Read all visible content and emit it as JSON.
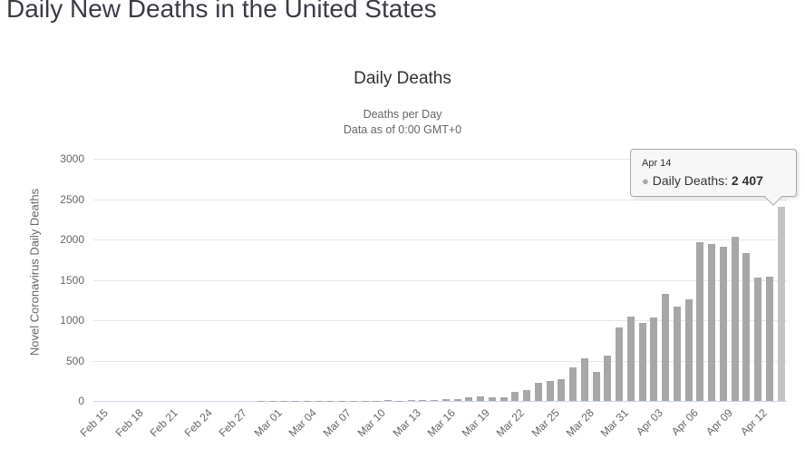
{
  "page": {
    "title": "Daily New Deaths in the United States"
  },
  "tooltip": {
    "date": "Apr 14",
    "marker": "●",
    "label": "Daily Deaths:",
    "value": "2 407"
  },
  "chart_data": {
    "type": "bar",
    "title": "Daily Deaths",
    "subtitle_line1": "Deaths per Day",
    "subtitle_line2": "Data as of 0:00 GMT+0",
    "xlabel": "",
    "ylabel": "Novel Coronavirus Daily Deaths",
    "ylim": [
      0,
      3000
    ],
    "yticks": [
      0,
      500,
      1000,
      1500,
      2000,
      2500,
      3000
    ],
    "grid": true,
    "legend": false,
    "bar_color": "#a7a7a7",
    "highlight_color": "#c3c3c3",
    "highlight_index": 59,
    "categories": [
      "Feb 15",
      "Feb 16",
      "Feb 17",
      "Feb 18",
      "Feb 19",
      "Feb 20",
      "Feb 21",
      "Feb 22",
      "Feb 23",
      "Feb 24",
      "Feb 25",
      "Feb 26",
      "Feb 27",
      "Feb 28",
      "Feb 29",
      "Mar 01",
      "Mar 02",
      "Mar 03",
      "Mar 04",
      "Mar 05",
      "Mar 06",
      "Mar 07",
      "Mar 08",
      "Mar 09",
      "Mar 10",
      "Mar 11",
      "Mar 12",
      "Mar 13",
      "Mar 14",
      "Mar 15",
      "Mar 16",
      "Mar 17",
      "Mar 18",
      "Mar 19",
      "Mar 20",
      "Mar 21",
      "Mar 22",
      "Mar 23",
      "Mar 24",
      "Mar 25",
      "Mar 26",
      "Mar 27",
      "Mar 28",
      "Mar 29",
      "Mar 30",
      "Mar 31",
      "Apr 01",
      "Apr 02",
      "Apr 03",
      "Apr 04",
      "Apr 05",
      "Apr 06",
      "Apr 07",
      "Apr 08",
      "Apr 09",
      "Apr 10",
      "Apr 11",
      "Apr 12",
      "Apr 13",
      "Apr 14"
    ],
    "values": [
      0,
      0,
      0,
      0,
      0,
      0,
      0,
      0,
      0,
      0,
      0,
      0,
      0,
      0,
      1,
      1,
      4,
      3,
      2,
      1,
      3,
      4,
      3,
      4,
      4,
      8,
      3,
      8,
      8,
      11,
      18,
      23,
      41,
      57,
      49,
      46,
      111,
      140,
      225,
      247,
      268,
      411,
      525,
      363,
      558,
      912,
      1049,
      968,
      1036,
      1331,
      1165,
      1255,
      1970,
      1940,
      1907,
      2035,
      1830,
      1528,
      1535,
      2407
    ],
    "xticklabels": [
      "Feb 15",
      "Feb 18",
      "Feb 21",
      "Feb 24",
      "Feb 27",
      "Mar 01",
      "Mar 04",
      "Mar 07",
      "Mar 10",
      "Mar 13",
      "Mar 16",
      "Mar 19",
      "Mar 22",
      "Mar 25",
      "Mar 28",
      "Mar 31",
      "Apr 03",
      "Apr 06",
      "Apr 09",
      "Apr 12"
    ]
  }
}
